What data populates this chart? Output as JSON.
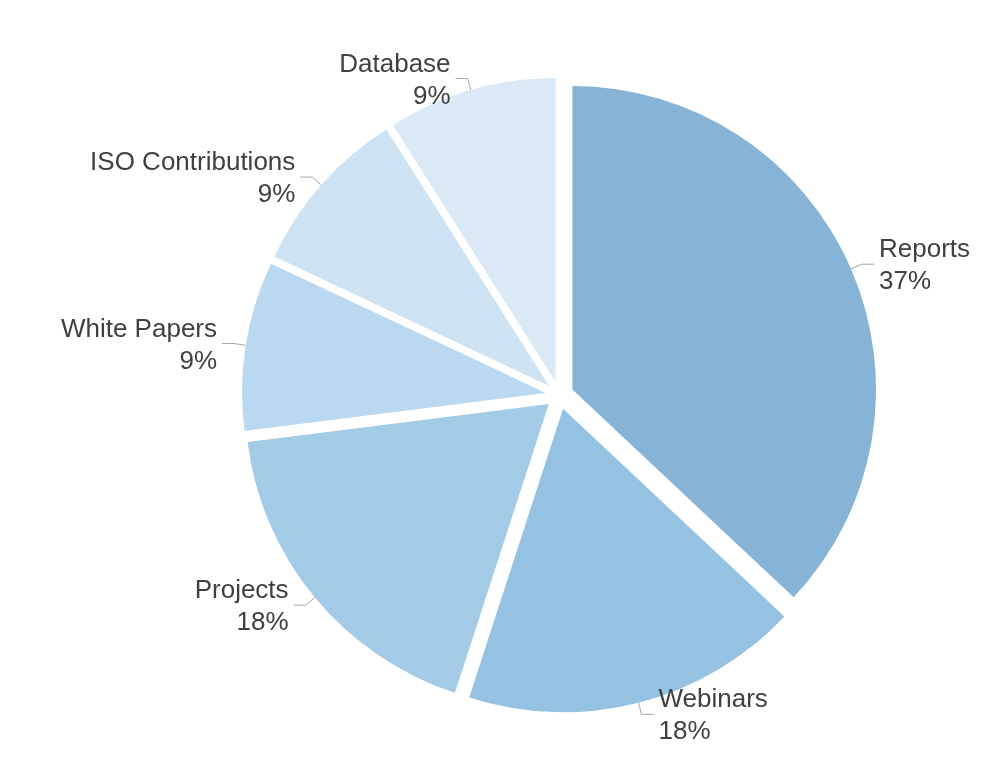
{
  "chart_data": {
    "type": "pie",
    "categories": [
      "Reports",
      "Webinars",
      "Projects",
      "White Papers",
      "ISO Contributions",
      "Database"
    ],
    "values": [
      37,
      18,
      18,
      9,
      9,
      9
    ],
    "colors": [
      "#86b3d6",
      "#95c2e3",
      "#a3cbe8",
      "#bad9f0",
      "#cde3f4",
      "#dbe8f5"
    ],
    "value_labels": [
      "37%",
      "18%",
      "18%",
      "9%",
      "9%",
      "9%"
    ],
    "legend": false
  }
}
